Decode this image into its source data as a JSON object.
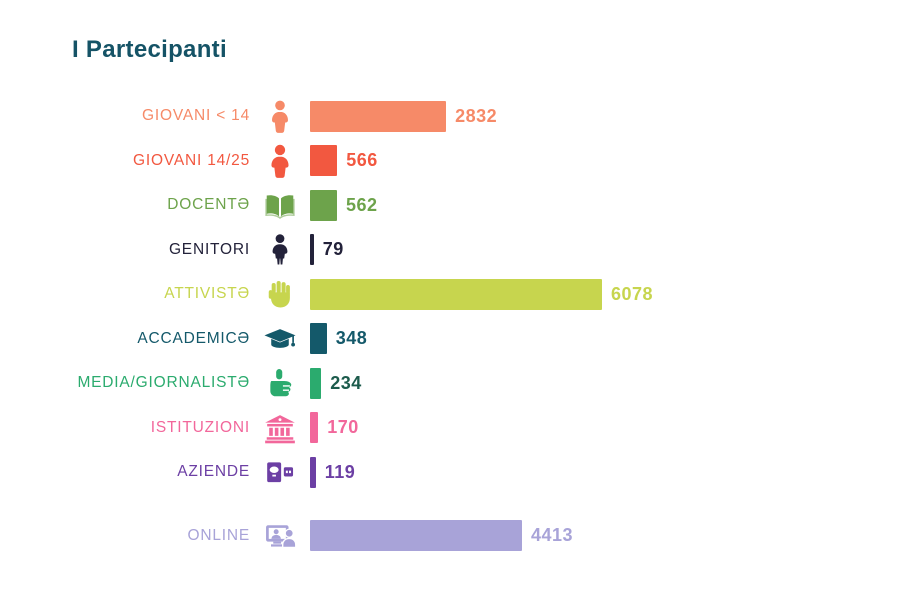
{
  "title_color": "#155366",
  "chart_data": {
    "type": "bar",
    "orientation": "horizontal",
    "title": "I Partecipanti",
    "xlabel": "",
    "ylabel": "",
    "xlim": [
      0,
      6078
    ],
    "grid": false,
    "legend": "none",
    "value_labels_shown": true,
    "gap_before_index": 9,
    "categories": [
      "GIOVANI < 14",
      "GIOVANI 14/25",
      "DOCENTƏ",
      "GENITORI",
      "ATTIVISTƏ",
      "ACCADEMICƏ",
      "MEDIA/GIORNALISTƏ",
      "ISTITUZIONI",
      "AZIENDE",
      "ONLINE"
    ],
    "values": [
      2832,
      566,
      562,
      79,
      6078,
      348,
      234,
      170,
      119,
      4413
    ],
    "colors": [
      "#F68A68",
      "#F25840",
      "#6DA34B",
      "#23223A",
      "#C7D54E",
      "#14596A",
      "#2BAB6E",
      "#F2679B",
      "#6C3FA4",
      "#A8A3D8"
    ],
    "value_label_colors": [
      "#F68A68",
      "#F25840",
      "#6DA34B",
      "#23223A",
      "#C7D54E",
      "#14596A",
      "#1C5B4C",
      "#F2679B",
      "#6C3FA4",
      "#A8A3D8"
    ],
    "icons": [
      "child-icon",
      "teen-icon",
      "open-book-icon",
      "parent-icon",
      "raised-fist-icon",
      "graduation-cap-icon",
      "microphone-hand-icon",
      "bank-icon",
      "presentation-icon",
      "video-call-icon"
    ]
  }
}
